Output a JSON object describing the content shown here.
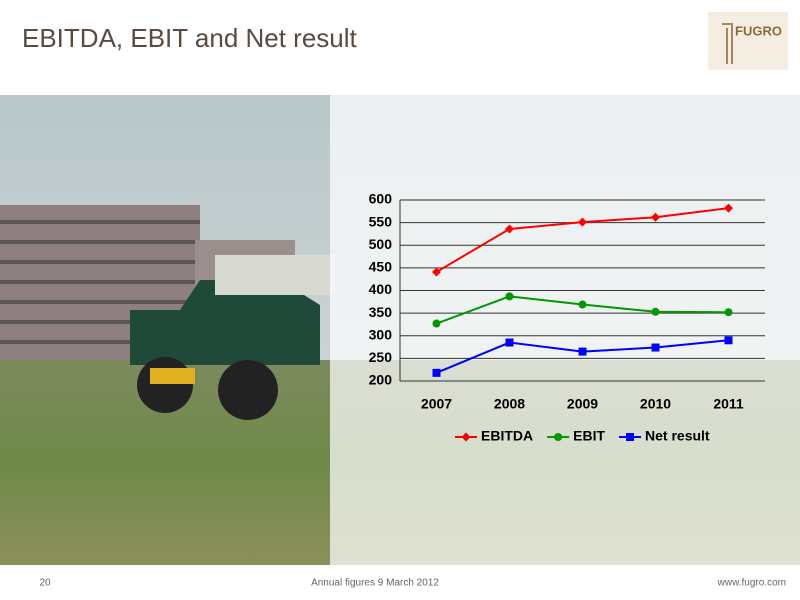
{
  "header": {
    "title": "EBITDA, EBIT and Net result",
    "logo": "FUGRO"
  },
  "footer": {
    "page": "20",
    "center": "Annual figures 9 March 2012",
    "url": "www.fugro.com"
  },
  "chart_data": {
    "type": "line",
    "categories": [
      "2007",
      "2008",
      "2009",
      "2010",
      "2011"
    ],
    "series": [
      {
        "name": "EBITDA",
        "color": "#ff0000",
        "marker": "diamond",
        "values": [
          441,
          536,
          551,
          562,
          582
        ]
      },
      {
        "name": "EBIT",
        "color": "#009900",
        "marker": "circle",
        "values": [
          327,
          387,
          369,
          353,
          352
        ]
      },
      {
        "name": "Net result",
        "color": "#0000ff",
        "marker": "square",
        "values": [
          218,
          285,
          265,
          274,
          290
        ]
      }
    ],
    "ylim": [
      200,
      600
    ],
    "yticks": [
      200,
      250,
      300,
      350,
      400,
      450,
      500,
      550,
      600
    ],
    "grid": true,
    "legend": "bottom"
  }
}
